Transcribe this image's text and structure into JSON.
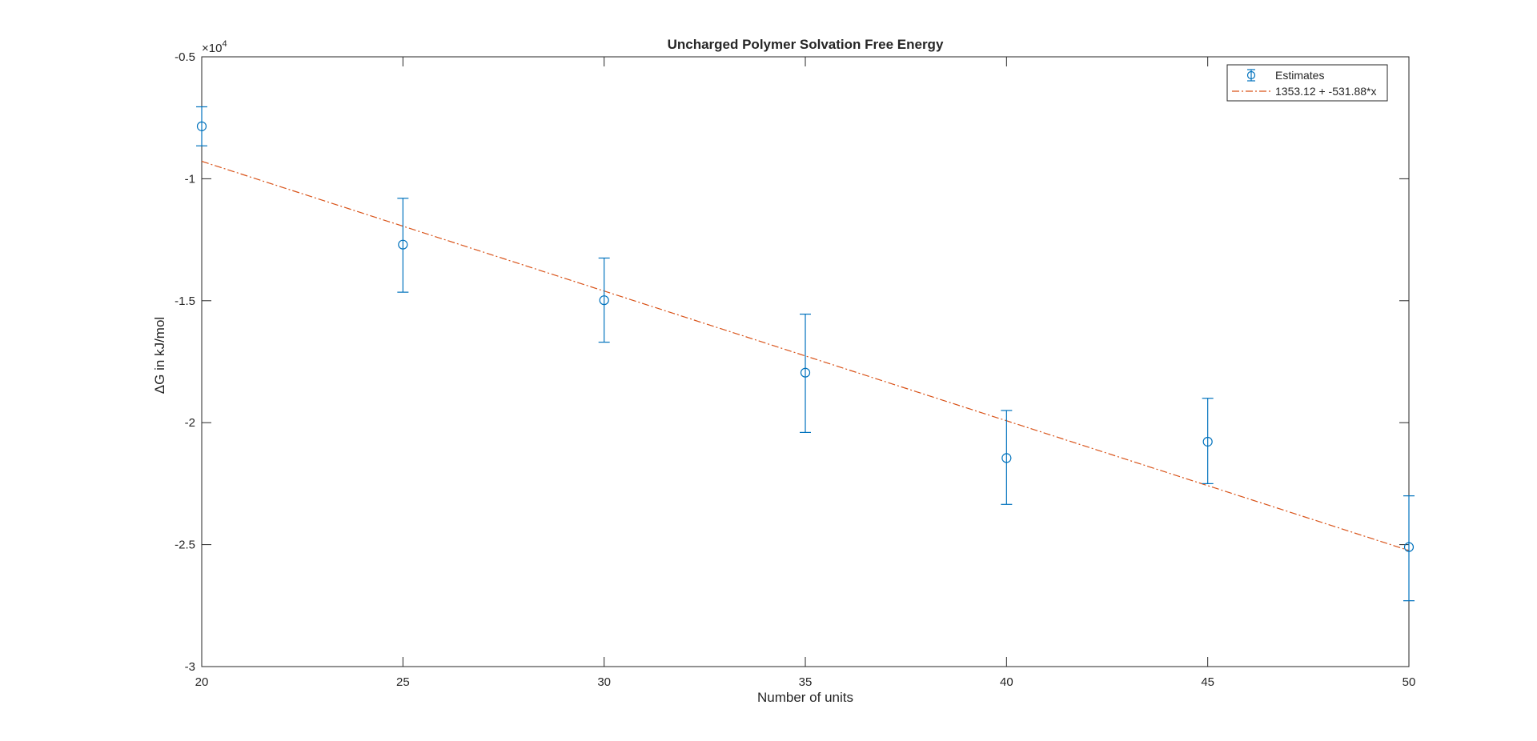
{
  "chart_data": {
    "type": "scatter",
    "title": "Uncharged Polymer Solvation Free Energy",
    "xlabel": "Number of units",
    "ylabel_symbol": "Δ",
    "ylabel": "G in kJ/mol",
    "y_exponent_base": "×10",
    "y_exponent_power": "4",
    "xlim": [
      20,
      50
    ],
    "ylim": [
      -30000,
      -5000
    ],
    "x_ticks": [
      20,
      25,
      30,
      35,
      40,
      45,
      50
    ],
    "x_tick_labels": [
      "20",
      "25",
      "30",
      "35",
      "40",
      "45",
      "50"
    ],
    "y_ticks": [
      -30000,
      -25000,
      -20000,
      -15000,
      -10000,
      -5000
    ],
    "y_tick_labels": [
      "-3",
      "-2.5",
      "-2",
      "-1.5",
      "-1",
      "-0.5"
    ],
    "grid": false,
    "legend_position": "top-right",
    "series": [
      {
        "name": "Estimates",
        "kind": "errorbar",
        "color": "#0072BD",
        "x": [
          20,
          25,
          30,
          35,
          40,
          45,
          50
        ],
        "y": [
          -7850,
          -12700,
          -14980,
          -17950,
          -21450,
          -20780,
          -25100
        ],
        "lower": [
          -8650,
          -14650,
          -16700,
          -20400,
          -23350,
          -22500,
          -27300
        ],
        "upper": [
          -7050,
          -10800,
          -13250,
          -15550,
          -19500,
          -19000,
          -23000
        ]
      },
      {
        "name": "1353.12 + -531.88*x",
        "kind": "line",
        "style": "dash-dot",
        "color": "#D95319",
        "intercept": 1353.12,
        "slope": -531.88
      }
    ]
  }
}
